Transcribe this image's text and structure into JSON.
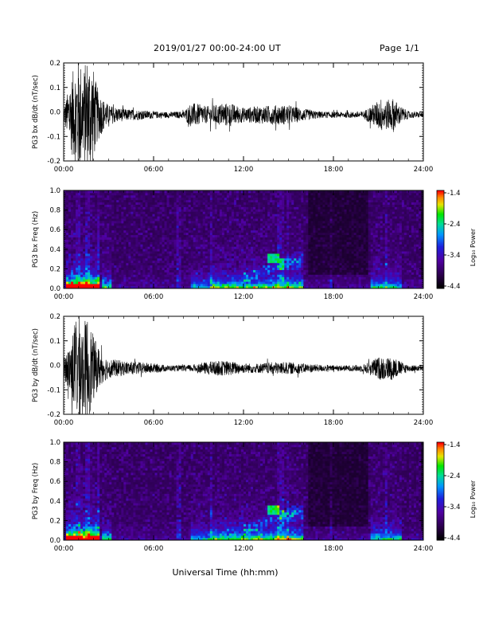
{
  "header": {
    "title": "2019/01/27  00:00-24:00 UT",
    "page": "Page 1/1"
  },
  "xlabel": "Universal Time (hh:mm)",
  "chart_data": [
    {
      "type": "line",
      "title": "",
      "ylabel": "PG3 bx dB/dt (nT/sec)",
      "xlim": [
        0,
        24
      ],
      "ylim": [
        -0.2,
        0.2
      ],
      "xticks": [
        "00:00",
        "06:00",
        "12:00",
        "18:00",
        "24:00"
      ],
      "yticks": [
        "-0.2",
        "-0.1",
        "0.0",
        "0.1",
        "0.2"
      ],
      "envelope": {
        "hours": [
          0,
          0.5,
          0.8,
          1.0,
          1.3,
          1.6,
          1.9,
          2.2,
          2.6,
          3.0,
          4.0,
          5.0,
          6.0,
          7.0,
          8.0,
          8.5,
          9.0,
          9.5,
          10.0,
          11.0,
          12.0,
          13.0,
          14.0,
          15.0,
          16.0,
          17.0,
          18.0,
          19.0,
          20.0,
          20.8,
          21.2,
          21.6,
          22.0,
          22.4,
          23.0,
          24.0
        ],
        "amplitude": [
          0.03,
          0.15,
          0.22,
          0.25,
          0.18,
          0.25,
          0.22,
          0.12,
          0.07,
          0.04,
          0.025,
          0.02,
          0.015,
          0.012,
          0.015,
          0.05,
          0.045,
          0.035,
          0.04,
          0.05,
          0.03,
          0.035,
          0.04,
          0.04,
          0.025,
          0.015,
          0.012,
          0.012,
          0.015,
          0.05,
          0.07,
          0.06,
          0.07,
          0.04,
          0.015,
          0.01
        ]
      }
    },
    {
      "type": "heatmap",
      "title": "",
      "ylabel": "PG3 bx Freq (Hz)",
      "xlim": [
        0,
        24
      ],
      "ylim": [
        0,
        1.0
      ],
      "xticks": [
        "00:00",
        "06:00",
        "12:00",
        "18:00",
        "24:00"
      ],
      "yticks": [
        "0.0",
        "0.2",
        "0.4",
        "0.6",
        "0.8",
        "1.0"
      ],
      "colorbar": {
        "label": "Log₁₀ Power",
        "range": [
          -4.4,
          -1.4
        ],
        "ticks": [
          "-1.4",
          "-2.4",
          "-3.4",
          "-4.4"
        ]
      }
    },
    {
      "type": "line",
      "title": "",
      "ylabel": "PG3 by dB/dt (nT/sec)",
      "xlim": [
        0,
        24
      ],
      "ylim": [
        -0.2,
        0.2
      ],
      "xticks": [
        "00:00",
        "06:00",
        "12:00",
        "18:00",
        "24:00"
      ],
      "yticks": [
        "-0.2",
        "-0.1",
        "0.0",
        "0.1",
        "0.2"
      ],
      "envelope": {
        "hours": [
          0,
          0.4,
          0.8,
          1.0,
          1.3,
          1.6,
          1.9,
          2.2,
          2.6,
          3.0,
          4.0,
          5.0,
          6.0,
          7.0,
          8.0,
          8.5,
          9.0,
          9.5,
          10.0,
          11.0,
          12.0,
          13.0,
          14.0,
          15.0,
          16.0,
          17.0,
          18.0,
          19.0,
          20.0,
          20.8,
          21.2,
          21.6,
          22.0,
          22.4,
          23.0,
          24.0
        ],
        "amplitude": [
          0.04,
          0.1,
          0.2,
          0.25,
          0.18,
          0.22,
          0.15,
          0.1,
          0.06,
          0.04,
          0.03,
          0.025,
          0.02,
          0.012,
          0.012,
          0.015,
          0.02,
          0.025,
          0.03,
          0.03,
          0.02,
          0.02,
          0.025,
          0.025,
          0.02,
          0.015,
          0.012,
          0.012,
          0.015,
          0.04,
          0.05,
          0.045,
          0.05,
          0.03,
          0.015,
          0.01
        ]
      }
    },
    {
      "type": "heatmap",
      "title": "",
      "ylabel": "PG3 by Freq (Hz)",
      "xlim": [
        0,
        24
      ],
      "ylim": [
        0,
        1.0
      ],
      "xticks": [
        "00:00",
        "06:00",
        "12:00",
        "18:00",
        "24:00"
      ],
      "yticks": [
        "0.0",
        "0.2",
        "0.4",
        "0.6",
        "0.8",
        "1.0"
      ],
      "colorbar": {
        "label": "Log₁₀ Power",
        "range": [
          -4.4,
          -1.4
        ],
        "ticks": [
          "-1.4",
          "-2.4",
          "-3.4",
          "-4.4"
        ]
      }
    }
  ],
  "colors": {
    "trace": "#000000",
    "axis": "#000000",
    "background": "#ffffff"
  }
}
